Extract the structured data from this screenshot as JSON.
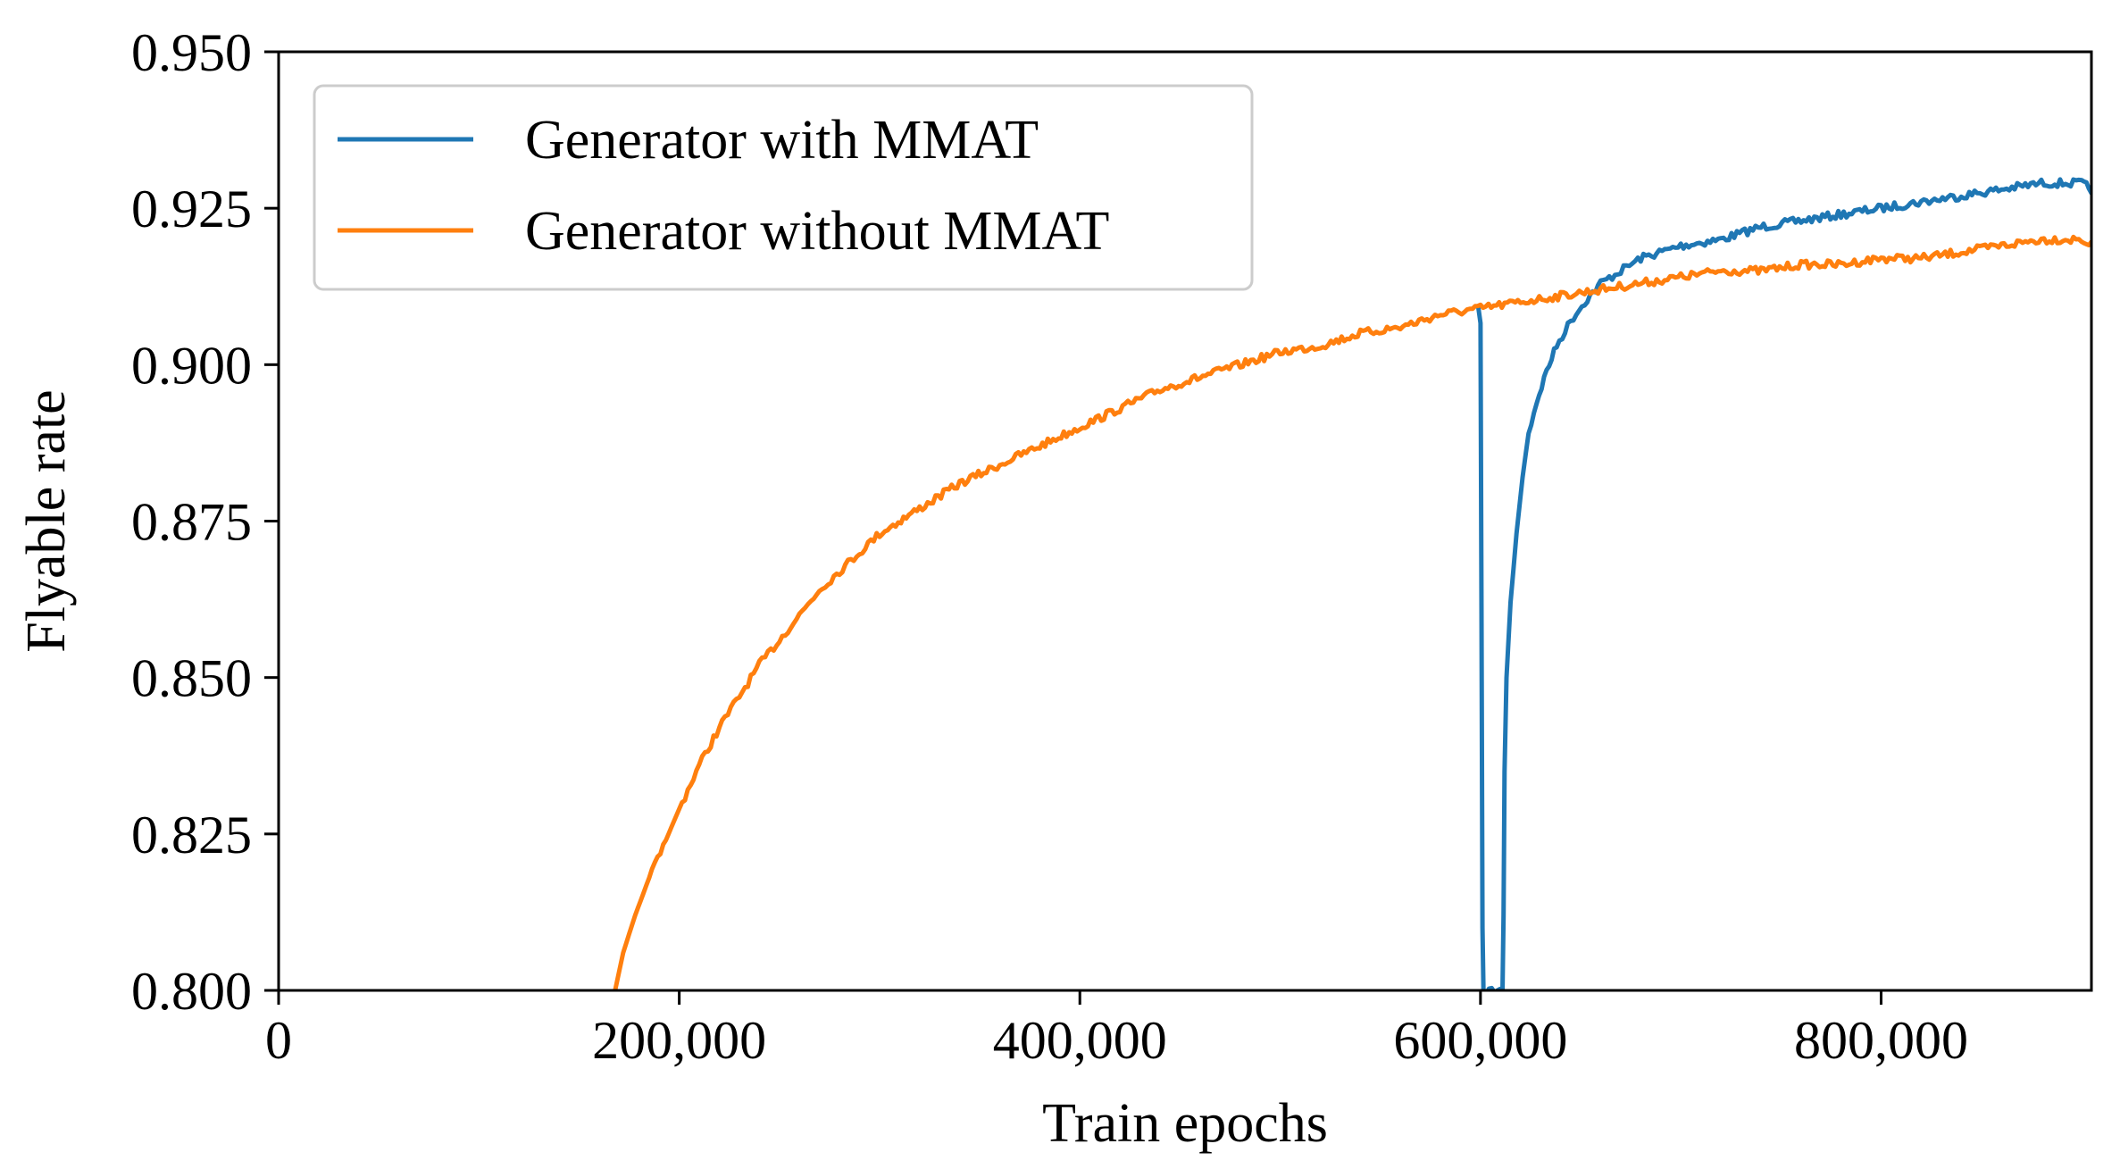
{
  "chart_data": {
    "type": "line",
    "xlabel": "Train epochs",
    "ylabel": "Flyable rate",
    "xlim": [
      0,
      905000
    ],
    "ylim": [
      0.8,
      0.95
    ],
    "x_ticks": [
      0,
      200000,
      400000,
      600000,
      800000
    ],
    "x_tick_labels": [
      "0",
      "200,000",
      "400,000",
      "600,000",
      "800,000"
    ],
    "y_ticks": [
      0.8,
      0.825,
      0.85,
      0.875,
      0.9,
      0.925,
      0.95
    ],
    "y_tick_labels": [
      "0.800",
      "0.825",
      "0.850",
      "0.875",
      "0.900",
      "0.925",
      "0.950"
    ],
    "grid": false,
    "legend_position": "top-left",
    "series": [
      {
        "name": "Generator with MMAT",
        "color": "#1f77b4",
        "x": [
          599000,
          600000,
          600500,
          601000,
          601500,
          611000,
          611500,
          612000,
          613000,
          615000,
          618000,
          621000,
          624000,
          628000,
          633000,
          638000,
          645000,
          652000,
          660000,
          670000,
          680000,
          700000,
          720000,
          740000,
          760000,
          780000,
          800000,
          820000,
          840000,
          860000,
          880000,
          900000,
          905000
        ],
        "y": [
          0.909,
          0.906,
          0.86,
          0.81,
          0.8,
          0.8,
          0.812,
          0.835,
          0.85,
          0.862,
          0.873,
          0.882,
          0.889,
          0.894,
          0.899,
          0.903,
          0.907,
          0.91,
          0.913,
          0.915,
          0.917,
          0.919,
          0.92,
          0.922,
          0.923,
          0.924,
          0.925,
          0.926,
          0.927,
          0.928,
          0.929,
          0.929,
          0.928
        ]
      },
      {
        "name": "Generator without MMAT",
        "color": "#ff7f0e",
        "x": [
          168000,
          172000,
          178000,
          185000,
          192000,
          200000,
          210000,
          220000,
          230000,
          240000,
          250000,
          260000,
          270000,
          280000,
          290000,
          300000,
          320000,
          340000,
          360000,
          380000,
          400000,
          420000,
          440000,
          460000,
          480000,
          500000,
          520000,
          540000,
          560000,
          580000,
          600000,
          620000,
          640000,
          660000,
          680000,
          700000,
          720000,
          740000,
          760000,
          780000,
          800000,
          820000,
          840000,
          860000,
          880000,
          900000,
          905000
        ],
        "y": [
          0.8,
          0.806,
          0.812,
          0.818,
          0.823,
          0.829,
          0.836,
          0.842,
          0.847,
          0.852,
          0.856,
          0.86,
          0.864,
          0.867,
          0.87,
          0.873,
          0.877,
          0.881,
          0.884,
          0.887,
          0.89,
          0.893,
          0.896,
          0.898,
          0.9,
          0.902,
          0.903,
          0.905,
          0.906,
          0.908,
          0.909,
          0.91,
          0.911,
          0.912,
          0.913,
          0.914,
          0.915,
          0.915,
          0.916,
          0.916,
          0.917,
          0.917,
          0.918,
          0.919,
          0.92,
          0.92,
          0.919
        ]
      }
    ]
  }
}
